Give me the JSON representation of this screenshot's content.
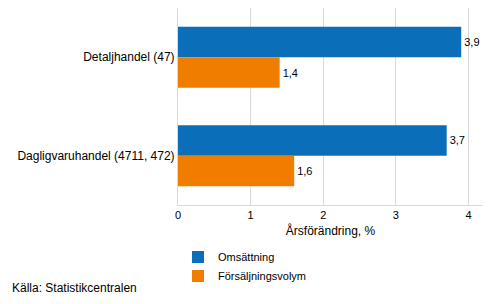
{
  "chart_data": {
    "type": "bar",
    "orientation": "horizontal",
    "categories": [
      "Detaljhandel (47)",
      "Dagligvaruhandel (4711, 472)"
    ],
    "series": [
      {
        "name": "Omsättning",
        "color": "#0a6fb8",
        "values": [
          3.9,
          3.7
        ],
        "value_labels": [
          "3,9",
          "3,7"
        ]
      },
      {
        "name": "Försäljningsvolym",
        "color": "#f07d00",
        "values": [
          1.4,
          1.6
        ],
        "value_labels": [
          "1,4",
          "1,6"
        ]
      }
    ],
    "xlabel": "Årsförändring, %",
    "xlim": [
      0,
      4.2
    ],
    "xticks": [
      0,
      1,
      2,
      3,
      4
    ],
    "grid": true,
    "data_labels": true,
    "legend": "bottom left",
    "annotations": [
      "Källa: Statistikcentralen"
    ]
  }
}
